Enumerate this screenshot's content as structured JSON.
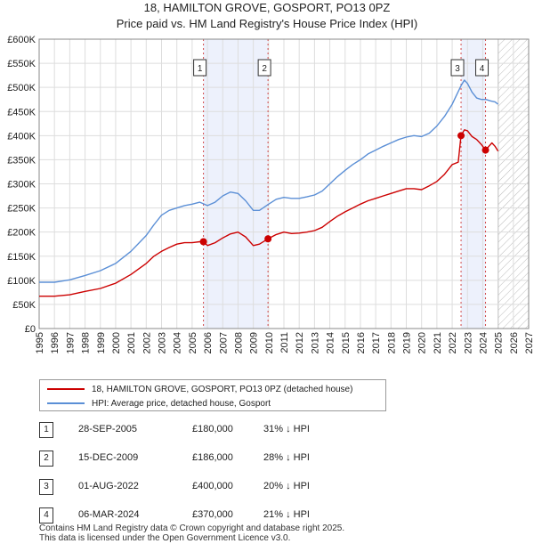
{
  "chart_data": {
    "type": "line",
    "title": "18, HAMILTON GROVE, GOSPORT, PO13 0PZ",
    "subtitle": "Price paid vs. HM Land Registry's House Price Index (HPI)",
    "xlabel": "",
    "ylabel": "",
    "xlim": [
      1995,
      2027
    ],
    "ylim": [
      0,
      600000
    ],
    "x_ticks": [
      "1995",
      "1996",
      "1997",
      "1998",
      "1999",
      "2000",
      "2001",
      "2002",
      "2003",
      "2004",
      "2005",
      "2006",
      "2007",
      "2008",
      "2009",
      "2010",
      "2011",
      "2012",
      "2013",
      "2014",
      "2015",
      "2016",
      "2017",
      "2018",
      "2019",
      "2020",
      "2021",
      "2022",
      "2023",
      "2024",
      "2025",
      "2026",
      "2027"
    ],
    "y_ticks": [
      {
        "value": 0,
        "label": "£0"
      },
      {
        "value": 50000,
        "label": "£50K"
      },
      {
        "value": 100000,
        "label": "£100K"
      },
      {
        "value": 150000,
        "label": "£150K"
      },
      {
        "value": 200000,
        "label": "£200K"
      },
      {
        "value": 250000,
        "label": "£250K"
      },
      {
        "value": 300000,
        "label": "£300K"
      },
      {
        "value": 350000,
        "label": "£350K"
      },
      {
        "value": 400000,
        "label": "£400K"
      },
      {
        "value": 450000,
        "label": "£450K"
      },
      {
        "value": 500000,
        "label": "£500K"
      },
      {
        "value": 550000,
        "label": "£550K"
      },
      {
        "value": 600000,
        "label": "£600K"
      }
    ],
    "grid": true,
    "legend_position": "below",
    "shaded_periods": [
      {
        "start": 2005.74,
        "end": 2009.96
      },
      {
        "start": 2022.58,
        "end": 2024.18
      }
    ],
    "projection_start": 2025.0,
    "series": [
      {
        "name": "18, HAMILTON GROVE, GOSPORT, PO13 0PZ (detached house)",
        "color": "#cc0000",
        "x": [
          1995.0,
          1996.0,
          1997.0,
          1998.0,
          1999.0,
          2000.0,
          2001.0,
          2002.0,
          2002.5,
          2003.0,
          2003.5,
          2004.0,
          2004.5,
          2005.0,
          2005.5,
          2005.74,
          2006.0,
          2006.5,
          2007.0,
          2007.5,
          2008.0,
          2008.5,
          2009.0,
          2009.4,
          2009.96,
          2010.5,
          2011.0,
          2011.5,
          2012.0,
          2012.5,
          2013.0,
          2013.5,
          2014.0,
          2014.5,
          2015.0,
          2015.5,
          2016.0,
          2016.5,
          2017.0,
          2017.5,
          2018.0,
          2018.5,
          2019.0,
          2019.5,
          2020.0,
          2020.5,
          2021.0,
          2021.5,
          2022.0,
          2022.4,
          2022.58,
          2022.8,
          2023.0,
          2023.3,
          2023.6,
          2023.9,
          2024.18,
          2024.4,
          2024.6,
          2024.8,
          2025.0
        ],
        "y": [
          67000,
          67000,
          70000,
          77000,
          83000,
          94000,
          112000,
          135000,
          150000,
          160000,
          168000,
          175000,
          178000,
          178000,
          180000,
          180000,
          172000,
          178000,
          188000,
          196000,
          200000,
          190000,
          172000,
          175000,
          186000,
          195000,
          200000,
          197000,
          198000,
          200000,
          203000,
          210000,
          222000,
          233000,
          242000,
          250000,
          258000,
          265000,
          270000,
          275000,
          280000,
          285000,
          290000,
          290000,
          288000,
          296000,
          305000,
          320000,
          340000,
          345000,
          400000,
          412000,
          410000,
          398000,
          392000,
          382000,
          370000,
          378000,
          385000,
          378000,
          368000
        ]
      },
      {
        "name": "HPI: Average price, detached house, Gosport",
        "color": "#5b8fd6",
        "x": [
          1995.0,
          1996.0,
          1997.0,
          1998.0,
          1999.0,
          2000.0,
          2001.0,
          2002.0,
          2002.5,
          2003.0,
          2003.5,
          2004.0,
          2004.5,
          2005.0,
          2005.5,
          2006.0,
          2006.5,
          2007.0,
          2007.5,
          2008.0,
          2008.5,
          2009.0,
          2009.4,
          2010.0,
          2010.5,
          2011.0,
          2011.5,
          2012.0,
          2012.5,
          2013.0,
          2013.5,
          2014.0,
          2014.5,
          2015.0,
          2015.5,
          2016.0,
          2016.5,
          2017.0,
          2017.5,
          2018.0,
          2018.5,
          2019.0,
          2019.5,
          2020.0,
          2020.5,
          2021.0,
          2021.5,
          2022.0,
          2022.3,
          2022.6,
          2022.8,
          2023.0,
          2023.3,
          2023.6,
          2023.9,
          2024.2,
          2024.5,
          2024.8,
          2025.0
        ],
        "y": [
          96000,
          96000,
          101000,
          110000,
          120000,
          135000,
          160000,
          193000,
          215000,
          235000,
          245000,
          250000,
          255000,
          258000,
          262000,
          255000,
          262000,
          275000,
          283000,
          280000,
          265000,
          245000,
          245000,
          258000,
          268000,
          272000,
          270000,
          270000,
          273000,
          277000,
          285000,
          300000,
          315000,
          328000,
          340000,
          350000,
          362000,
          370000,
          378000,
          385000,
          392000,
          397000,
          400000,
          398000,
          405000,
          420000,
          440000,
          465000,
          485000,
          505000,
          515000,
          508000,
          490000,
          478000,
          475000,
          475000,
          472000,
          470000,
          465000
        ]
      }
    ],
    "markers": [
      {
        "label": "1",
        "x": 2005.74,
        "y": 180000,
        "color": "#cc0000"
      },
      {
        "label": "2",
        "x": 2009.96,
        "y": 186000,
        "color": "#cc0000"
      },
      {
        "label": "3",
        "x": 2022.58,
        "y": 400000,
        "color": "#cc0000"
      },
      {
        "label": "4",
        "x": 2024.18,
        "y": 370000,
        "color": "#cc0000"
      }
    ],
    "marker_boxes": [
      {
        "label": "1",
        "x": 2005.74
      },
      {
        "label": "2",
        "x": 2009.96
      },
      {
        "label": "3",
        "x": 2022.58
      },
      {
        "label": "4",
        "x": 2024.18
      }
    ]
  },
  "legend": {
    "items": [
      {
        "label": "18, HAMILTON GROVE, GOSPORT, PO13 0PZ (detached house)",
        "color": "#cc0000"
      },
      {
        "label": "HPI: Average price, detached house, Gosport",
        "color": "#5b8fd6"
      }
    ]
  },
  "sales": [
    {
      "num": "1",
      "date": "28-SEP-2005",
      "price": "£180,000",
      "hpi": "31% ↓ HPI"
    },
    {
      "num": "2",
      "date": "15-DEC-2009",
      "price": "£186,000",
      "hpi": "28% ↓ HPI"
    },
    {
      "num": "3",
      "date": "01-AUG-2022",
      "price": "£400,000",
      "hpi": "20% ↓ HPI"
    },
    {
      "num": "4",
      "date": "06-MAR-2024",
      "price": "£370,000",
      "hpi": "21% ↓ HPI"
    }
  ],
  "footer": {
    "line1": "Contains HM Land Registry data © Crown copyright and database right 2025.",
    "line2": "This data is licensed under the Open Government Licence v3.0."
  }
}
